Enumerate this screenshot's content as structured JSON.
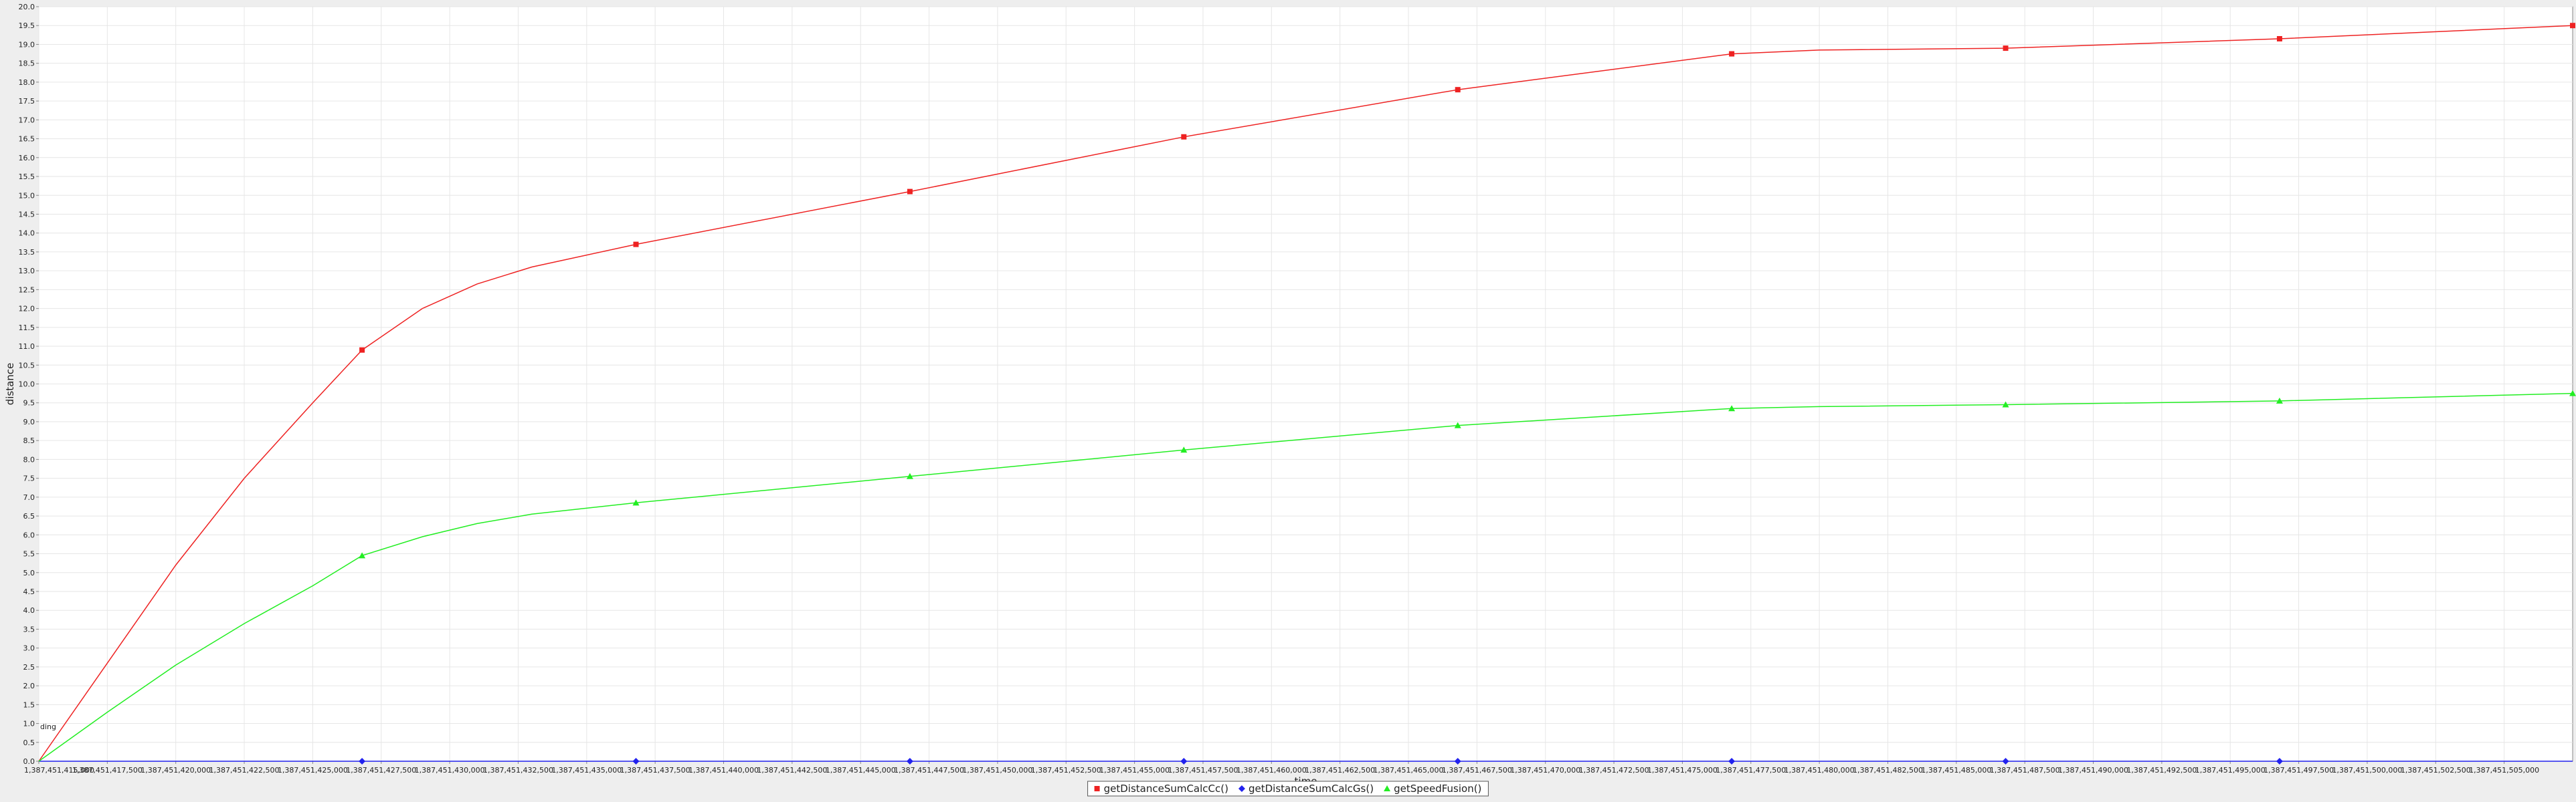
{
  "chart_data": {
    "type": "line",
    "title": "",
    "xlabel": "time",
    "ylabel": "distance",
    "annotation": "ding",
    "xlim": [
      1387451415000,
      1387451507500
    ],
    "ylim": [
      0.0,
      20.0
    ],
    "grid": true,
    "legend_position": "bottom",
    "x_ticks": [
      "1,387,451,415,000",
      "1,387,451,417,500",
      "1,387,451,420,000",
      "1,387,451,422,500",
      "1,387,451,425,000",
      "1,387,451,427,500",
      "1,387,451,430,000",
      "1,387,451,432,500",
      "1,387,451,435,000",
      "1,387,451,437,500",
      "1,387,451,440,000",
      "1,387,451,442,500",
      "1,387,451,445,000",
      "1,387,451,447,500",
      "1,387,451,450,000",
      "1,387,451,452,500",
      "1,387,451,455,000",
      "1,387,451,457,500",
      "1,387,451,460,000",
      "1,387,451,462,500",
      "1,387,451,465,000",
      "1,387,451,467,500",
      "1,387,451,470,000",
      "1,387,451,472,500",
      "1,387,451,475,000",
      "1,387,451,477,500",
      "1,387,451,480,000",
      "1,387,451,482,500",
      "1,387,451,485,000",
      "1,387,451,487,500",
      "1,387,451,490,000",
      "1,387,451,492,500",
      "1,387,451,495,000",
      "1,387,451,497,500",
      "1,387,451,500,000",
      "1,387,451,502,500",
      "1,387,451,505,000"
    ],
    "y_ticks": [
      "0.0",
      "0.5",
      "1.0",
      "1.5",
      "2.0",
      "2.5",
      "3.0",
      "3.5",
      "4.0",
      "4.5",
      "5.0",
      "5.5",
      "6.0",
      "6.5",
      "7.0",
      "7.5",
      "8.0",
      "8.5",
      "9.0",
      "9.5",
      "10.0",
      "10.5",
      "11.0",
      "11.5",
      "12.0",
      "12.5",
      "13.0",
      "13.5",
      "14.0",
      "14.5",
      "15.0",
      "15.5",
      "16.0",
      "16.5",
      "17.0",
      "17.5",
      "18.0",
      "18.5",
      "19.0",
      "19.5",
      "20.0"
    ],
    "series": [
      {
        "name": "getDistanceSumCalcCc()",
        "color": "#ee2222",
        "marker": "square",
        "points": [
          [
            1387451415000,
            0.0
          ],
          [
            1387451417500,
            2.6
          ],
          [
            1387451420000,
            5.2
          ],
          [
            1387451422500,
            7.5
          ],
          [
            1387451425000,
            9.5
          ],
          [
            1387451426800,
            10.9
          ],
          [
            1387451429000,
            12.0
          ],
          [
            1387451431000,
            12.65
          ],
          [
            1387451433000,
            13.1
          ],
          [
            1387451436800,
            13.7
          ],
          [
            1387451446800,
            15.1
          ],
          [
            1387451456800,
            16.55
          ],
          [
            1387451466800,
            17.8
          ],
          [
            1387451476800,
            18.75
          ],
          [
            1387451480000,
            18.85
          ],
          [
            1387451486800,
            18.9
          ],
          [
            1387451496800,
            19.15
          ],
          [
            1387451507500,
            19.5
          ]
        ],
        "markers": [
          [
            1387451426800,
            10.9
          ],
          [
            1387451436800,
            13.7
          ],
          [
            1387451446800,
            15.1
          ],
          [
            1387451456800,
            16.55
          ],
          [
            1387451466800,
            17.8
          ],
          [
            1387451476800,
            18.75
          ],
          [
            1387451486800,
            18.9
          ],
          [
            1387451496800,
            19.15
          ],
          [
            1387451507500,
            19.5
          ]
        ]
      },
      {
        "name": "getDistanceSumCalcGs()",
        "color": "#2222ee",
        "marker": "diamond",
        "points": [
          [
            1387451415000,
            0.0
          ],
          [
            1387451426800,
            0.0
          ],
          [
            1387451436800,
            0.0
          ],
          [
            1387451446800,
            0.0
          ],
          [
            1387451456800,
            0.0
          ],
          [
            1387451466800,
            0.0
          ],
          [
            1387451476800,
            0.0
          ],
          [
            1387451486800,
            0.0
          ],
          [
            1387451496800,
            0.0
          ],
          [
            1387451507500,
            0.0
          ]
        ],
        "markers": [
          [
            1387451426800,
            0.0
          ],
          [
            1387451436800,
            0.0
          ],
          [
            1387451446800,
            0.0
          ],
          [
            1387451456800,
            0.0
          ],
          [
            1387451466800,
            0.0
          ],
          [
            1387451476800,
            0.0
          ],
          [
            1387451486800,
            0.0
          ],
          [
            1387451496800,
            0.0
          ]
        ]
      },
      {
        "name": "getSpeedFusion()",
        "color": "#22ee22",
        "marker": "triangle",
        "points": [
          [
            1387451415000,
            0.0
          ],
          [
            1387451417500,
            1.3
          ],
          [
            1387451420000,
            2.55
          ],
          [
            1387451422500,
            3.65
          ],
          [
            1387451425000,
            4.65
          ],
          [
            1387451426800,
            5.45
          ],
          [
            1387451429000,
            5.95
          ],
          [
            1387451431000,
            6.3
          ],
          [
            1387451433000,
            6.55
          ],
          [
            1387451436800,
            6.85
          ],
          [
            1387451446800,
            7.55
          ],
          [
            1387451456800,
            8.25
          ],
          [
            1387451466800,
            8.9
          ],
          [
            1387451476800,
            9.35
          ],
          [
            1387451480000,
            9.4
          ],
          [
            1387451486800,
            9.45
          ],
          [
            1387451496800,
            9.55
          ],
          [
            1387451507500,
            9.75
          ]
        ],
        "markers": [
          [
            1387451426800,
            5.45
          ],
          [
            1387451436800,
            6.85
          ],
          [
            1387451446800,
            7.55
          ],
          [
            1387451456800,
            8.25
          ],
          [
            1387451466800,
            8.9
          ],
          [
            1387451476800,
            9.35
          ],
          [
            1387451486800,
            9.45
          ],
          [
            1387451496800,
            9.55
          ],
          [
            1387451507500,
            9.75
          ]
        ]
      }
    ]
  }
}
